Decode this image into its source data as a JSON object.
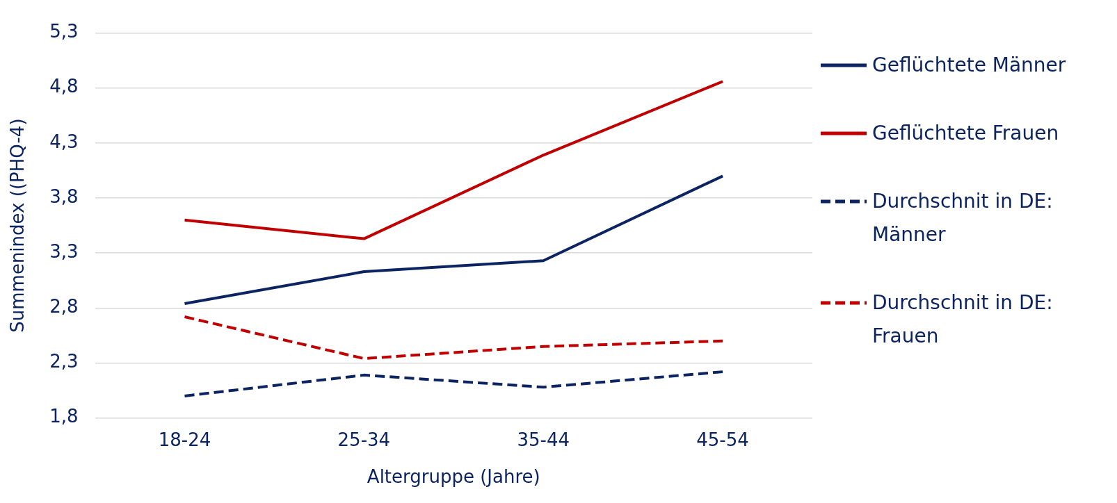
{
  "chart_data": {
    "type": "line",
    "xlabel": "Altergruppe (Jahre)",
    "ylabel": "Summenindex ((PHQ-4)",
    "categories": [
      "18-24",
      "25-34",
      "35-44",
      "45-54"
    ],
    "series": [
      {
        "name": "Geflüchtete Männer",
        "color": "#0c2461",
        "values": [
          2.84,
          3.13,
          3.23,
          4.0
        ],
        "line_style": "solid"
      },
      {
        "name": "Geflüchtete Frauen",
        "color": "#c00000",
        "values": [
          3.6,
          3.43,
          4.19,
          4.86
        ],
        "line_style": "solid"
      },
      {
        "name": "Durchschnit in DE: Männer",
        "color": "#0c2461",
        "values": [
          2.0,
          2.19,
          2.08,
          2.22
        ],
        "line_style": "dashed"
      },
      {
        "name": "Durchschnit in DE: Frauen",
        "color": "#c00000",
        "values": [
          2.72,
          2.34,
          2.45,
          2.5
        ],
        "line_style": "dashed"
      }
    ],
    "ylim": [
      1.8,
      5.3
    ],
    "yticks": [
      {
        "value": 1.8,
        "label": "1,8"
      },
      {
        "value": 2.3,
        "label": "2,3"
      },
      {
        "value": 2.8,
        "label": "2,8"
      },
      {
        "value": 3.3,
        "label": "3,3"
      },
      {
        "value": 3.8,
        "label": "3,8"
      },
      {
        "value": 4.3,
        "label": "4,3"
      },
      {
        "value": 4.8,
        "label": "4,8"
      },
      {
        "value": 5.3,
        "label": "5,3"
      }
    ],
    "grid": "y",
    "legend": "right",
    "marker": "none"
  }
}
